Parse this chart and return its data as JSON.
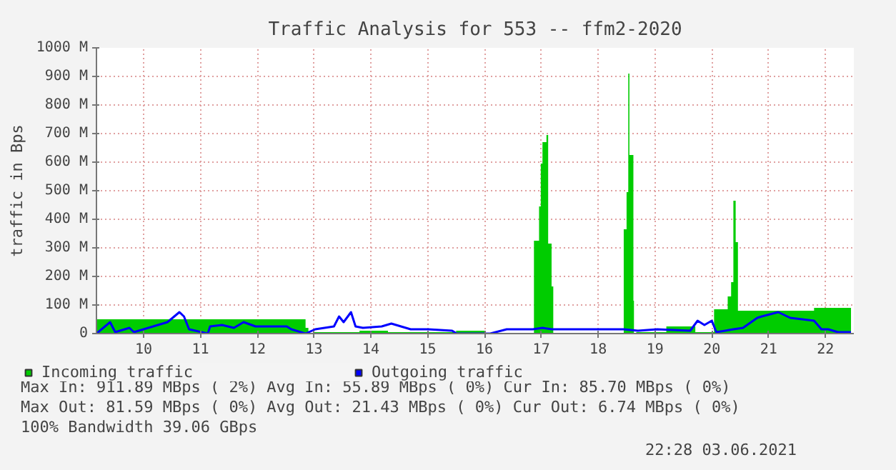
{
  "chart_data": {
    "type": "area",
    "title": "Traffic Analysis for 553 -- ffm2-2020",
    "ylabel": "traffic in Bps",
    "xlim": [
      9.17,
      22.5
    ],
    "xticks": [
      10,
      11,
      12,
      13,
      14,
      15,
      16,
      17,
      18,
      19,
      20,
      21,
      22
    ],
    "ylim": [
      0,
      1000
    ],
    "yticks": [
      0,
      {
        "value": 100,
        "label": "100 M"
      },
      {
        "value": 200,
        "label": "200 M"
      },
      {
        "value": 300,
        "label": "300 M"
      },
      {
        "value": 400,
        "label": "400 M"
      },
      {
        "value": 500,
        "label": "500 M"
      },
      {
        "value": 600,
        "label": "600 M"
      },
      {
        "value": 700,
        "label": "700 M"
      },
      {
        "value": 800,
        "label": "800 M"
      },
      {
        "value": 900,
        "label": "900 M"
      },
      {
        "value": 1000,
        "label": "1000 M"
      }
    ],
    "grid": true,
    "legend": "bottom",
    "series": [
      {
        "name": "Incoming traffic",
        "color": "#00cc00",
        "x": [
          9.17,
          10.0,
          11.0,
          12.0,
          12.8,
          12.85,
          12.9,
          13.0,
          13.8,
          14.3,
          14.8,
          15.5,
          15.95,
          16.0,
          16.87,
          16.96,
          16.99,
          17.02,
          17.09,
          17.12,
          17.18,
          17.21,
          18.45,
          18.5,
          18.53,
          18.55,
          18.62,
          18.63,
          18.67,
          19.2,
          19.62,
          19.71,
          19.96,
          20.04,
          20.28,
          20.34,
          20.38,
          20.42,
          20.46,
          21.0,
          21.8,
          22.45
        ],
        "values": [
          50,
          50,
          50,
          50,
          50,
          20,
          0,
          5,
          10,
          5,
          5,
          10,
          10,
          0,
          325,
          445,
          595,
          670,
          695,
          315,
          165,
          0,
          365,
          495,
          910,
          625,
          115,
          0,
          5,
          25,
          25,
          5,
          5,
          85,
          130,
          180,
          465,
          320,
          80,
          80,
          90,
          90
        ]
      },
      {
        "name": "Outgoing traffic",
        "type": "line",
        "color": "#0000ff",
        "x": [
          9.17,
          9.41,
          9.5,
          9.75,
          9.83,
          10.42,
          10.63,
          10.71,
          10.8,
          11.13,
          11.17,
          11.38,
          11.59,
          11.76,
          11.97,
          12.52,
          12.6,
          12.85,
          13.02,
          13.35,
          13.44,
          13.52,
          13.65,
          13.73,
          13.86,
          14.19,
          14.36,
          14.7,
          15.01,
          15.43,
          15.51,
          16.1,
          16.39,
          16.6,
          16.85,
          17.02,
          17.19,
          17.36,
          18.45,
          18.7,
          19.04,
          19.62,
          19.75,
          19.87,
          20.0,
          20.08,
          20.38,
          20.55,
          20.8,
          20.88,
          21.17,
          21.38,
          21.8,
          21.93,
          22.05,
          22.22,
          22.45
        ],
        "values": [
          0,
          40,
          5,
          20,
          5,
          40,
          75,
          60,
          15,
          0,
          25,
          30,
          20,
          40,
          25,
          25,
          15,
          0,
          15,
          25,
          60,
          40,
          75,
          25,
          20,
          25,
          35,
          15,
          15,
          10,
          0,
          0,
          15,
          15,
          15,
          20,
          15,
          15,
          15,
          10,
          15,
          10,
          45,
          30,
          45,
          5,
          15,
          20,
          55,
          60,
          75,
          55,
          45,
          15,
          15,
          5,
          5
        ]
      }
    ],
    "annotations": [
      "Max In: 911.89 MBps ( 2%)  Avg In:  55.89 MBps ( 0%)  Cur In:  85.70 MBps ( 0%)",
      "Max Out: 81.59 MBps ( 0%)  Avg Out: 21.43 MBps ( 0%)  Cur Out:  6.74 MBps ( 0%)",
      "100% Bandwidth 39.06 GBps",
      "22:28 03.06.2021"
    ]
  }
}
